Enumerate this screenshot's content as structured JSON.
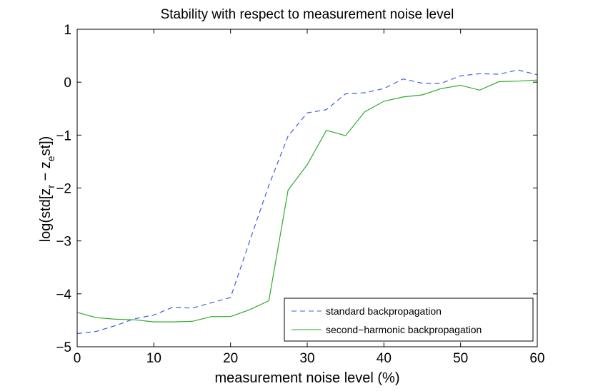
{
  "chart_data": {
    "type": "line",
    "title": "Stability with respect to measurement noise level",
    "xlabel": "measurement noise level (%)",
    "ylabel_main": "log(std[z",
    "ylabel_sub1": "r",
    "ylabel_mid": " − z",
    "ylabel_sub2": "e",
    "ylabel_tail": "st])",
    "xlim": [
      0,
      60
    ],
    "ylim": [
      -5,
      1
    ],
    "xticks": [
      0,
      10,
      20,
      30,
      40,
      50,
      60
    ],
    "yticks": [
      -5,
      -4,
      -3,
      -2,
      -1,
      0,
      1
    ],
    "ytick_labels": [
      "−5",
      "−4",
      "−3",
      "−2",
      "−1",
      "0",
      "1"
    ],
    "legend_position": "bottom-right",
    "grid": false,
    "series": [
      {
        "name": "standard backpropagation",
        "color": "#3b5ce4",
        "style": "dashed",
        "x": [
          0,
          2.5,
          5,
          7.5,
          10,
          12.5,
          15,
          17.5,
          20,
          22.5,
          25,
          27.5,
          30,
          32.5,
          35,
          37.5,
          40,
          42.5,
          45,
          47.5,
          50,
          52.5,
          55,
          57.5,
          60
        ],
        "y": [
          -4.75,
          -4.71,
          -4.6,
          -4.47,
          -4.4,
          -4.25,
          -4.27,
          -4.17,
          -4.07,
          -3.0,
          -1.95,
          -1.02,
          -0.58,
          -0.52,
          -0.22,
          -0.2,
          -0.12,
          0.06,
          -0.02,
          -0.02,
          0.12,
          0.16,
          0.15,
          0.23,
          0.14
        ]
      },
      {
        "name": "second−harmonic backpropagation",
        "color": "#2eaa2e",
        "style": "solid",
        "x": [
          0,
          2.5,
          5,
          7.5,
          10,
          12.5,
          15,
          17.5,
          20,
          22.5,
          25,
          27.5,
          30,
          32.5,
          35,
          37.5,
          40,
          42.5,
          45,
          47.5,
          50,
          52.5,
          55,
          57.5,
          60
        ],
        "y": [
          -4.35,
          -4.45,
          -4.48,
          -4.49,
          -4.53,
          -4.53,
          -4.52,
          -4.43,
          -4.43,
          -4.3,
          -4.13,
          -2.04,
          -1.56,
          -0.91,
          -1.01,
          -0.56,
          -0.36,
          -0.28,
          -0.24,
          -0.12,
          -0.06,
          -0.15,
          0.01,
          0.02,
          0.04
        ]
      }
    ]
  }
}
